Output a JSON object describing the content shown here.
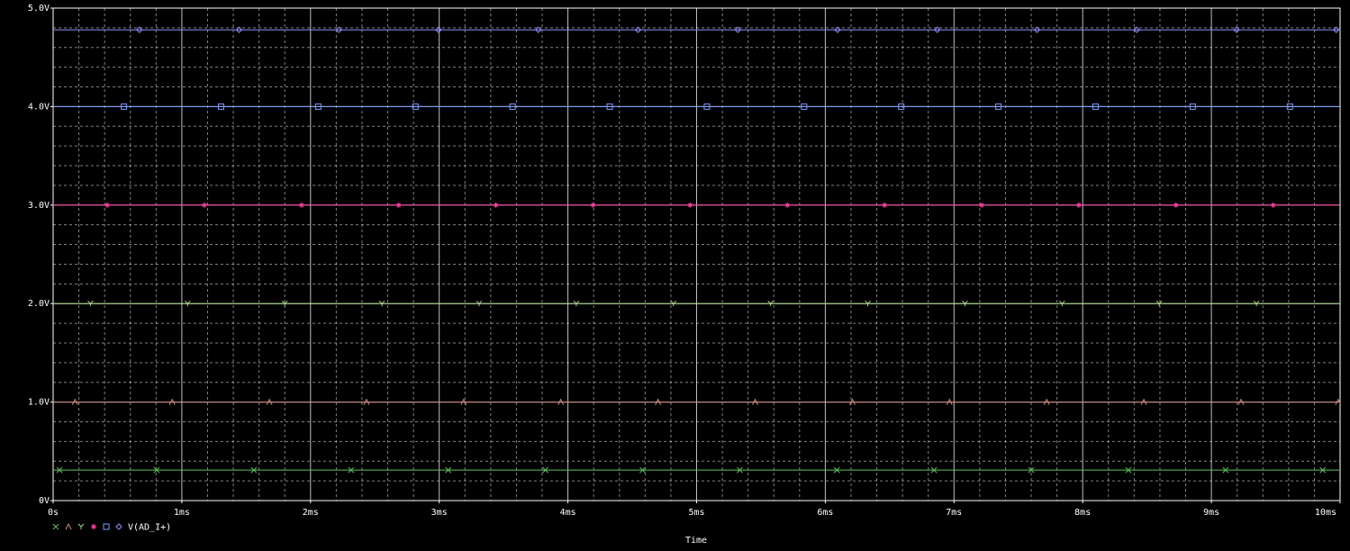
{
  "window": {
    "background": "#000000"
  },
  "chart_data": {
    "type": "line",
    "xlabel": "Time",
    "ylabel": "",
    "x_tick_labels": [
      "0s",
      "1ms",
      "2ms",
      "3ms",
      "4ms",
      "5ms",
      "6ms",
      "7ms",
      "8ms",
      "9ms",
      "10ms"
    ],
    "y_tick_labels": [
      "0V",
      "1.0V",
      "2.0V",
      "3.0V",
      "4.0V",
      "5.0V"
    ],
    "xlim": [
      0,
      10
    ],
    "ylim": [
      0,
      5
    ],
    "x_units": "ms",
    "y_units": "V",
    "grid": true,
    "grid_color": "#ffffff",
    "axis_color": "#ffffff",
    "legend_position": "bottom-left",
    "series": [
      {
        "name": "",
        "marker": "x",
        "color": "#5fbf5f",
        "x": [
          0,
          10
        ],
        "values": [
          0.31,
          0.31
        ],
        "marker_start": 0.05,
        "marker_step": 0.755
      },
      {
        "name": "",
        "marker": "triangle",
        "color": "#d08a7a",
        "x": [
          0,
          10
        ],
        "values": [
          1.0,
          1.0
        ],
        "marker_start": 0.17,
        "marker_step": 0.755
      },
      {
        "name": "",
        "marker": "y",
        "color": "#a8d88a",
        "x": [
          0,
          10
        ],
        "values": [
          2.0,
          2.0
        ],
        "marker_start": 0.29,
        "marker_step": 0.755
      },
      {
        "name": "",
        "marker": "star",
        "color": "#ff3fa0",
        "x": [
          0,
          10
        ],
        "values": [
          3.0,
          3.0
        ],
        "marker_start": 0.42,
        "marker_step": 0.755
      },
      {
        "name": "",
        "marker": "square",
        "color": "#7b9bff",
        "x": [
          0,
          10
        ],
        "values": [
          4.0,
          4.0
        ],
        "marker_start": 0.55,
        "marker_step": 0.755
      },
      {
        "name": "V(AD_I+)",
        "marker": "diamond",
        "color": "#8f8fff",
        "x": [
          0,
          10
        ],
        "values": [
          4.78,
          4.78
        ],
        "marker_start": 0.67,
        "marker_step": 0.775
      }
    ]
  }
}
